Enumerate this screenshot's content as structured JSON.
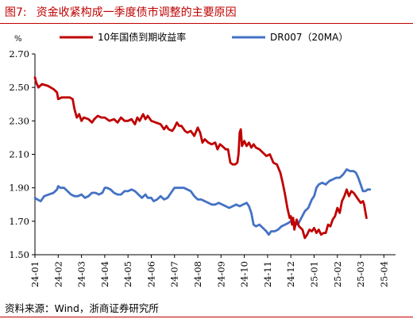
{
  "header": {
    "figure_label": "图7:",
    "title": "资金收紧构成一季度债市调整的主要原因"
  },
  "footer": {
    "source": "资料来源：Wind，浙商证券研究所"
  },
  "chart_data": {
    "type": "line",
    "title": "资金收紧构成一季度债市调整的主要原因",
    "ylabel": "%",
    "ylim": [
      1.5,
      2.7
    ],
    "yticks": [
      "1.50",
      "1.70",
      "1.90",
      "2.10",
      "2.30",
      "2.50",
      "2.70"
    ],
    "x_tick_labels": [
      "24-01",
      "24-02",
      "24-03",
      "24-04",
      "24-05",
      "24-06",
      "24-07",
      "24-08",
      "24-09",
      "24-10",
      "24-11",
      "24-12",
      "25-01",
      "25-02",
      "25-03",
      "25-04"
    ],
    "legend_position": "top",
    "grid": false,
    "series": [
      {
        "name": "10年国债到期收益率",
        "color": "#c00000",
        "points": [
          [
            0.0,
            2.56
          ],
          [
            0.05,
            2.53
          ],
          [
            0.15,
            2.5
          ],
          [
            0.3,
            2.52
          ],
          [
            0.55,
            2.51
          ],
          [
            0.8,
            2.49
          ],
          [
            0.95,
            2.47
          ],
          [
            1.0,
            2.43
          ],
          [
            1.15,
            2.44
          ],
          [
            1.5,
            2.44
          ],
          [
            1.62,
            2.43
          ],
          [
            1.7,
            2.37
          ],
          [
            1.8,
            2.32
          ],
          [
            1.9,
            2.34
          ],
          [
            2.0,
            2.3
          ],
          [
            2.1,
            2.32
          ],
          [
            2.3,
            2.31
          ],
          [
            2.45,
            2.29
          ],
          [
            2.55,
            2.31
          ],
          [
            2.7,
            2.33
          ],
          [
            2.85,
            2.32
          ],
          [
            3.0,
            2.32
          ],
          [
            3.2,
            2.3
          ],
          [
            3.4,
            2.31
          ],
          [
            3.55,
            2.29
          ],
          [
            3.7,
            2.32
          ],
          [
            3.85,
            2.3
          ],
          [
            4.0,
            2.3
          ],
          [
            4.15,
            2.31
          ],
          [
            4.3,
            2.28
          ],
          [
            4.4,
            2.32
          ],
          [
            4.5,
            2.3
          ],
          [
            4.65,
            2.34
          ],
          [
            4.75,
            2.31
          ],
          [
            4.85,
            2.33
          ],
          [
            5.0,
            2.3
          ],
          [
            5.2,
            2.29
          ],
          [
            5.4,
            2.28
          ],
          [
            5.55,
            2.25
          ],
          [
            5.65,
            2.27
          ],
          [
            5.75,
            2.25
          ],
          [
            5.9,
            2.24
          ],
          [
            6.0,
            2.26
          ],
          [
            6.1,
            2.29
          ],
          [
            6.2,
            2.27
          ],
          [
            6.3,
            2.27
          ],
          [
            6.45,
            2.24
          ],
          [
            6.55,
            2.23
          ],
          [
            6.7,
            2.24
          ],
          [
            6.85,
            2.21
          ],
          [
            7.0,
            2.26
          ],
          [
            7.1,
            2.23
          ],
          [
            7.2,
            2.17
          ],
          [
            7.3,
            2.19
          ],
          [
            7.45,
            2.17
          ],
          [
            7.6,
            2.16
          ],
          [
            7.75,
            2.17
          ],
          [
            7.85,
            2.13
          ],
          [
            7.95,
            2.16
          ],
          [
            8.05,
            2.15
          ],
          [
            8.2,
            2.13
          ],
          [
            8.3,
            2.13
          ],
          [
            8.4,
            2.05
          ],
          [
            8.5,
            2.04
          ],
          [
            8.6,
            2.04
          ],
          [
            8.7,
            2.05
          ],
          [
            8.75,
            2.1
          ],
          [
            8.8,
            2.23
          ],
          [
            8.85,
            2.25
          ],
          [
            8.9,
            2.15
          ],
          [
            9.0,
            2.18
          ],
          [
            9.1,
            2.15
          ],
          [
            9.2,
            2.17
          ],
          [
            9.3,
            2.14
          ],
          [
            9.4,
            2.16
          ],
          [
            9.5,
            2.14
          ],
          [
            9.65,
            2.13
          ],
          [
            9.8,
            2.11
          ],
          [
            9.95,
            2.09
          ],
          [
            10.1,
            2.1
          ],
          [
            10.25,
            2.05
          ],
          [
            10.4,
            2.04
          ],
          [
            10.55,
            1.99
          ],
          [
            10.65,
            1.93
          ],
          [
            10.75,
            1.86
          ],
          [
            10.85,
            1.78
          ],
          [
            10.95,
            1.72
          ],
          [
            11.0,
            1.73
          ],
          [
            11.05,
            1.68
          ],
          [
            11.1,
            1.72
          ],
          [
            11.15,
            1.65
          ],
          [
            11.25,
            1.71
          ],
          [
            11.35,
            1.67
          ],
          [
            11.5,
            1.65
          ],
          [
            11.6,
            1.6
          ],
          [
            11.7,
            1.62
          ],
          [
            11.8,
            1.65
          ],
          [
            11.9,
            1.64
          ],
          [
            12.0,
            1.66
          ],
          [
            12.1,
            1.63
          ],
          [
            12.2,
            1.65
          ],
          [
            12.3,
            1.62
          ],
          [
            12.4,
            1.63
          ],
          [
            12.5,
            1.63
          ],
          [
            12.6,
            1.68
          ],
          [
            12.7,
            1.67
          ],
          [
            12.8,
            1.71
          ],
          [
            12.9,
            1.73
          ],
          [
            13.0,
            1.78
          ],
          [
            13.1,
            1.75
          ],
          [
            13.2,
            1.82
          ],
          [
            13.3,
            1.85
          ],
          [
            13.4,
            1.89
          ],
          [
            13.5,
            1.85
          ],
          [
            13.6,
            1.88
          ],
          [
            13.7,
            1.87
          ],
          [
            13.8,
            1.85
          ],
          [
            13.9,
            1.83
          ],
          [
            14.0,
            1.81
          ],
          [
            14.1,
            1.82
          ],
          [
            14.15,
            1.8
          ],
          [
            14.2,
            1.76
          ],
          [
            14.25,
            1.72
          ]
        ]
      },
      {
        "name": "DR007（20MA）",
        "color": "#4472c4",
        "points": [
          [
            0.0,
            1.84
          ],
          [
            0.1,
            1.83
          ],
          [
            0.25,
            1.82
          ],
          [
            0.4,
            1.85
          ],
          [
            0.6,
            1.86
          ],
          [
            0.8,
            1.87
          ],
          [
            0.95,
            1.89
          ],
          [
            1.0,
            1.91
          ],
          [
            1.1,
            1.9
          ],
          [
            1.25,
            1.9
          ],
          [
            1.4,
            1.88
          ],
          [
            1.55,
            1.86
          ],
          [
            1.7,
            1.85
          ],
          [
            1.85,
            1.85
          ],
          [
            2.0,
            1.86
          ],
          [
            2.15,
            1.84
          ],
          [
            2.3,
            1.85
          ],
          [
            2.45,
            1.87
          ],
          [
            2.6,
            1.87
          ],
          [
            2.75,
            1.86
          ],
          [
            2.9,
            1.87
          ],
          [
            3.0,
            1.9
          ],
          [
            3.1,
            1.9
          ],
          [
            3.25,
            1.89
          ],
          [
            3.4,
            1.87
          ],
          [
            3.55,
            1.86
          ],
          [
            3.7,
            1.86
          ],
          [
            3.85,
            1.88
          ],
          [
            4.0,
            1.88
          ],
          [
            4.15,
            1.89
          ],
          [
            4.3,
            1.88
          ],
          [
            4.45,
            1.86
          ],
          [
            4.6,
            1.84
          ],
          [
            4.75,
            1.86
          ],
          [
            4.85,
            1.84
          ],
          [
            5.0,
            1.84
          ],
          [
            5.1,
            1.82
          ],
          [
            5.25,
            1.83
          ],
          [
            5.4,
            1.85
          ],
          [
            5.55,
            1.83
          ],
          [
            5.7,
            1.84
          ],
          [
            5.85,
            1.87
          ],
          [
            6.0,
            1.9
          ],
          [
            6.1,
            1.9
          ],
          [
            6.25,
            1.9
          ],
          [
            6.4,
            1.9
          ],
          [
            6.55,
            1.89
          ],
          [
            6.7,
            1.88
          ],
          [
            6.85,
            1.85
          ],
          [
            7.0,
            1.83
          ],
          [
            7.15,
            1.83
          ],
          [
            7.3,
            1.82
          ],
          [
            7.45,
            1.81
          ],
          [
            7.6,
            1.8
          ],
          [
            7.75,
            1.8
          ],
          [
            7.9,
            1.81
          ],
          [
            8.05,
            1.8
          ],
          [
            8.2,
            1.79
          ],
          [
            8.35,
            1.78
          ],
          [
            8.5,
            1.79
          ],
          [
            8.65,
            1.8
          ],
          [
            8.8,
            1.79
          ],
          [
            8.95,
            1.8
          ],
          [
            9.1,
            1.81
          ],
          [
            9.2,
            1.79
          ],
          [
            9.3,
            1.75
          ],
          [
            9.4,
            1.68
          ],
          [
            9.5,
            1.67
          ],
          [
            9.65,
            1.68
          ],
          [
            9.8,
            1.66
          ],
          [
            9.95,
            1.64
          ],
          [
            10.05,
            1.62
          ],
          [
            10.15,
            1.64
          ],
          [
            10.3,
            1.64
          ],
          [
            10.45,
            1.65
          ],
          [
            10.6,
            1.67
          ],
          [
            10.75,
            1.68
          ],
          [
            10.9,
            1.69
          ],
          [
            11.0,
            1.7
          ],
          [
            11.15,
            1.69
          ],
          [
            11.3,
            1.68
          ],
          [
            11.45,
            1.72
          ],
          [
            11.6,
            1.76
          ],
          [
            11.75,
            1.78
          ],
          [
            11.9,
            1.83
          ],
          [
            12.0,
            1.85
          ],
          [
            12.1,
            1.9
          ],
          [
            12.2,
            1.92
          ],
          [
            12.35,
            1.93
          ],
          [
            12.5,
            1.92
          ],
          [
            12.65,
            1.94
          ],
          [
            12.8,
            1.95
          ],
          [
            12.95,
            1.96
          ],
          [
            13.1,
            1.96
          ],
          [
            13.25,
            1.98
          ],
          [
            13.4,
            2.01
          ],
          [
            13.55,
            2.0
          ],
          [
            13.7,
            2.0
          ],
          [
            13.8,
            1.99
          ],
          [
            13.9,
            1.96
          ],
          [
            14.0,
            1.92
          ],
          [
            14.1,
            1.88
          ],
          [
            14.2,
            1.88
          ],
          [
            14.3,
            1.89
          ],
          [
            14.4,
            1.89
          ]
        ]
      }
    ]
  }
}
